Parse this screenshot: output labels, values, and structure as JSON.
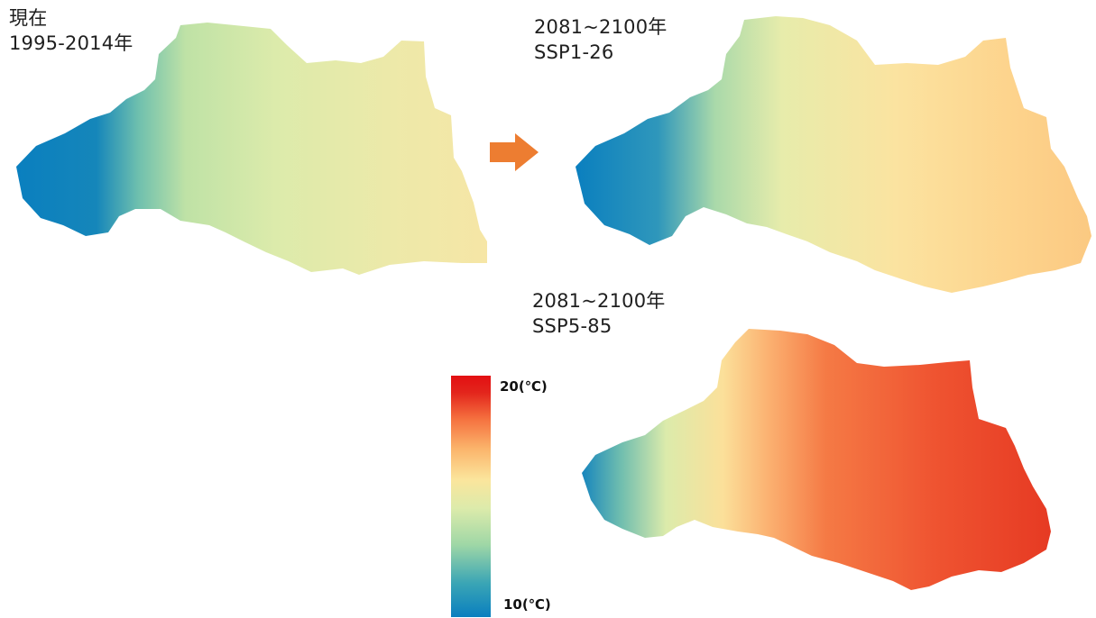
{
  "panels": {
    "present": {
      "line1": "現在",
      "line2": "1995-2014年"
    },
    "ssp126": {
      "line1": "2081~2100年",
      "line2": "SSP1-26"
    },
    "ssp585": {
      "line1": "2081~2100年",
      "line2": "SSP5-85"
    }
  },
  "legend": {
    "max_label": "20(℃)",
    "min_label": "10(℃)",
    "colors": [
      "#0a7fbf",
      "#3aa5b5",
      "#9fd7a6",
      "#dcebab",
      "#fbe59c",
      "#fbb36a",
      "#f5713f",
      "#e3251c",
      "#e30f12"
    ]
  },
  "arrow": {
    "color": "#ed7d31",
    "icon": "arrow-right-icon"
  }
}
